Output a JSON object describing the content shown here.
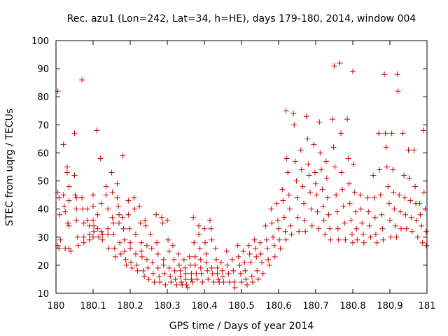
{
  "chart_data": {
    "type": "scatter",
    "title": "Rec. azu1 (Lon=242, Lat=34, h=HE), days 179-180, 2014, window 004",
    "xlabel": "GPS time / Days of year 2014",
    "ylabel": "STEC from uqrg / TECUs",
    "xlim": [
      180,
      181
    ],
    "ylim": [
      10,
      100
    ],
    "xticks": [
      180,
      180.1,
      180.2,
      180.3,
      180.4,
      180.5,
      180.6,
      180.7,
      180.8,
      180.9,
      181
    ],
    "xtick_labels": [
      "180",
      "180.1",
      "180.2",
      "180.3",
      "180.4",
      "180.5",
      "180.6",
      "180.7",
      "180.8",
      "180.9",
      "181"
    ],
    "yticks": [
      10,
      20,
      30,
      40,
      50,
      60,
      70,
      80,
      90,
      100
    ],
    "ytick_labels": [
      "10",
      "20",
      "30",
      "40",
      "50",
      "60",
      "70",
      "80",
      "90",
      "100"
    ],
    "grid": false,
    "marker": "plus",
    "color": "#cc0000",
    "points": [
      [
        180.005,
        82
      ],
      [
        180.005,
        46
      ],
      [
        180.008,
        44
      ],
      [
        180.01,
        38
      ],
      [
        180.012,
        29
      ],
      [
        180.005,
        27
      ],
      [
        180.008,
        26
      ],
      [
        180.02,
        63
      ],
      [
        180.02,
        45
      ],
      [
        180.022,
        41
      ],
      [
        180.025,
        39
      ],
      [
        180.025,
        26
      ],
      [
        180.03,
        55
      ],
      [
        180.03,
        53
      ],
      [
        180.035,
        48
      ],
      [
        180.035,
        43
      ],
      [
        180.032,
        35
      ],
      [
        180.035,
        34
      ],
      [
        180.035,
        26
      ],
      [
        180.04,
        25
      ],
      [
        180.05,
        67
      ],
      [
        180.05,
        52
      ],
      [
        180.052,
        45
      ],
      [
        180.055,
        44
      ],
      [
        180.055,
        40
      ],
      [
        180.055,
        36
      ],
      [
        180.058,
        30
      ],
      [
        180.06,
        27
      ],
      [
        180.07,
        86
      ],
      [
        180.07,
        44
      ],
      [
        180.072,
        40
      ],
      [
        180.075,
        35
      ],
      [
        180.075,
        30
      ],
      [
        180.075,
        28
      ],
      [
        180.085,
        40
      ],
      [
        180.085,
        36
      ],
      [
        180.09,
        34
      ],
      [
        180.09,
        31
      ],
      [
        180.09,
        29
      ],
      [
        180.1,
        45
      ],
      [
        180.1,
        41
      ],
      [
        180.1,
        36
      ],
      [
        180.102,
        34
      ],
      [
        180.102,
        32
      ],
      [
        180.1,
        30
      ],
      [
        180.11,
        68
      ],
      [
        180.112,
        38
      ],
      [
        180.112,
        33
      ],
      [
        180.115,
        30
      ],
      [
        180.12,
        58
      ],
      [
        180.122,
        42
      ],
      [
        180.122,
        32
      ],
      [
        180.125,
        31
      ],
      [
        180.125,
        29
      ],
      [
        180.135,
        48
      ],
      [
        180.135,
        45
      ],
      [
        180.14,
        40
      ],
      [
        180.14,
        33
      ],
      [
        180.14,
        31
      ],
      [
        180.142,
        26
      ],
      [
        180.15,
        53
      ],
      [
        180.152,
        46
      ],
      [
        180.152,
        37
      ],
      [
        180.155,
        35
      ],
      [
        180.155,
        31
      ],
      [
        180.158,
        26
      ],
      [
        180.16,
        23
      ],
      [
        180.165,
        49
      ],
      [
        180.165,
        44
      ],
      [
        180.168,
        41
      ],
      [
        180.17,
        38
      ],
      [
        180.17,
        35
      ],
      [
        180.172,
        28
      ],
      [
        180.175,
        24
      ],
      [
        180.18,
        59
      ],
      [
        180.18,
        37
      ],
      [
        180.182,
        33
      ],
      [
        180.185,
        29
      ],
      [
        180.185,
        25
      ],
      [
        180.188,
        22
      ],
      [
        180.19,
        20
      ],
      [
        180.195,
        43
      ],
      [
        180.195,
        38
      ],
      [
        180.198,
        33
      ],
      [
        180.2,
        28
      ],
      [
        180.2,
        26
      ],
      [
        180.202,
        21
      ],
      [
        180.205,
        19
      ],
      [
        180.21,
        44
      ],
      [
        180.212,
        40
      ],
      [
        180.215,
        31
      ],
      [
        180.215,
        24
      ],
      [
        180.218,
        20
      ],
      [
        180.22,
        18
      ],
      [
        180.225,
        41
      ],
      [
        180.228,
        35
      ],
      [
        180.23,
        28
      ],
      [
        180.23,
        25
      ],
      [
        180.232,
        23
      ],
      [
        180.235,
        18
      ],
      [
        180.238,
        16
      ],
      [
        180.24,
        36
      ],
      [
        180.242,
        34
      ],
      [
        180.245,
        27
      ],
      [
        180.245,
        22
      ],
      [
        180.248,
        19
      ],
      [
        180.25,
        15
      ],
      [
        180.255,
        31
      ],
      [
        180.258,
        26
      ],
      [
        180.26,
        21
      ],
      [
        180.262,
        17
      ],
      [
        180.265,
        14
      ],
      [
        180.27,
        38
      ],
      [
        180.272,
        28
      ],
      [
        180.275,
        24
      ],
      [
        180.275,
        19
      ],
      [
        180.278,
        16
      ],
      [
        180.28,
        14
      ],
      [
        180.285,
        37
      ],
      [
        180.288,
        35
      ],
      [
        180.29,
        22
      ],
      [
        180.29,
        20
      ],
      [
        180.292,
        17
      ],
      [
        180.295,
        13
      ],
      [
        180.3,
        36
      ],
      [
        180.302,
        29
      ],
      [
        180.305,
        25
      ],
      [
        180.305,
        19
      ],
      [
        180.308,
        16
      ],
      [
        180.31,
        14
      ],
      [
        180.315,
        27
      ],
      [
        180.318,
        22
      ],
      [
        180.32,
        18
      ],
      [
        180.322,
        15
      ],
      [
        180.325,
        13
      ],
      [
        180.33,
        24
      ],
      [
        180.332,
        20
      ],
      [
        180.335,
        18
      ],
      [
        180.335,
        16
      ],
      [
        180.338,
        14
      ],
      [
        180.34,
        13
      ],
      [
        180.345,
        22
      ],
      [
        180.348,
        19
      ],
      [
        180.35,
        17
      ],
      [
        180.35,
        15
      ],
      [
        180.352,
        13
      ],
      [
        180.355,
        12
      ],
      [
        180.36,
        23
      ],
      [
        180.362,
        20
      ],
      [
        180.365,
        17
      ],
      [
        180.365,
        15
      ],
      [
        180.368,
        14
      ],
      [
        180.37,
        37
      ],
      [
        180.372,
        28
      ],
      [
        180.375,
        23
      ],
      [
        180.375,
        20
      ],
      [
        180.378,
        17
      ],
      [
        180.38,
        15
      ],
      [
        180.385,
        34
      ],
      [
        180.385,
        31
      ],
      [
        180.388,
        26
      ],
      [
        180.39,
        22
      ],
      [
        180.39,
        19
      ],
      [
        180.392,
        17
      ],
      [
        180.395,
        14
      ],
      [
        180.4,
        33
      ],
      [
        180.402,
        28
      ],
      [
        180.405,
        24
      ],
      [
        180.405,
        21
      ],
      [
        180.408,
        18
      ],
      [
        180.41,
        15
      ],
      [
        180.415,
        36
      ],
      [
        180.418,
        33
      ],
      [
        180.42,
        29
      ],
      [
        180.42,
        19
      ],
      [
        180.422,
        17
      ],
      [
        180.425,
        14
      ],
      [
        180.43,
        26
      ],
      [
        180.432,
        22
      ],
      [
        180.435,
        19
      ],
      [
        180.435,
        17
      ],
      [
        180.438,
        15
      ],
      [
        180.44,
        14
      ],
      [
        180.445,
        21
      ],
      [
        180.448,
        18
      ],
      [
        180.45,
        16
      ],
      [
        180.452,
        14
      ],
      [
        180.46,
        25
      ],
      [
        180.462,
        20
      ],
      [
        180.465,
        17
      ],
      [
        180.468,
        14
      ],
      [
        180.475,
        22
      ],
      [
        180.478,
        18
      ],
      [
        180.48,
        14
      ],
      [
        180.482,
        12
      ],
      [
        180.49,
        27
      ],
      [
        180.492,
        23
      ],
      [
        180.495,
        20
      ],
      [
        180.498,
        17
      ],
      [
        180.5,
        14
      ],
      [
        180.505,
        25
      ],
      [
        180.508,
        21
      ],
      [
        180.51,
        18
      ],
      [
        180.512,
        15
      ],
      [
        180.515,
        13
      ],
      [
        180.52,
        27
      ],
      [
        180.522,
        24
      ],
      [
        180.525,
        21
      ],
      [
        180.528,
        16
      ],
      [
        180.53,
        14
      ],
      [
        180.535,
        29
      ],
      [
        180.538,
        26
      ],
      [
        180.54,
        23
      ],
      [
        180.542,
        18
      ],
      [
        180.545,
        15
      ],
      [
        180.55,
        28
      ],
      [
        180.552,
        24
      ],
      [
        180.555,
        21
      ],
      [
        180.558,
        17
      ],
      [
        180.565,
        34
      ],
      [
        180.568,
        29
      ],
      [
        180.57,
        26
      ],
      [
        180.572,
        22
      ],
      [
        180.575,
        20
      ],
      [
        180.58,
        40
      ],
      [
        180.582,
        35
      ],
      [
        180.585,
        30
      ],
      [
        180.588,
        27
      ],
      [
        180.59,
        23
      ],
      [
        180.595,
        42
      ],
      [
        180.598,
        36
      ],
      [
        180.6,
        33
      ],
      [
        180.602,
        29
      ],
      [
        180.605,
        26
      ],
      [
        180.61,
        47
      ],
      [
        180.612,
        43
      ],
      [
        180.615,
        37
      ],
      [
        180.618,
        32
      ],
      [
        180.62,
        29
      ],
      [
        180.62,
        75
      ],
      [
        180.622,
        58
      ],
      [
        180.625,
        53
      ],
      [
        180.628,
        45
      ],
      [
        180.63,
        40
      ],
      [
        180.632,
        34
      ],
      [
        180.635,
        31
      ],
      [
        180.64,
        74
      ],
      [
        180.642,
        70
      ],
      [
        180.645,
        57
      ],
      [
        180.648,
        50
      ],
      [
        180.65,
        44
      ],
      [
        180.652,
        37
      ],
      [
        180.655,
        32
      ],
      [
        180.66,
        61
      ],
      [
        180.662,
        54
      ],
      [
        180.665,
        48
      ],
      [
        180.668,
        42
      ],
      [
        180.67,
        36
      ],
      [
        180.672,
        32
      ],
      [
        180.675,
        73
      ],
      [
        180.678,
        65
      ],
      [
        180.68,
        56
      ],
      [
        180.682,
        52
      ],
      [
        180.685,
        46
      ],
      [
        180.688,
        40
      ],
      [
        180.69,
        34
      ],
      [
        180.695,
        63
      ],
      [
        180.698,
        53
      ],
      [
        180.7,
        49
      ],
      [
        180.702,
        45
      ],
      [
        180.705,
        39
      ],
      [
        180.708,
        33
      ],
      [
        180.71,
        71
      ],
      [
        180.712,
        60
      ],
      [
        180.715,
        54
      ],
      [
        180.718,
        47
      ],
      [
        180.72,
        41
      ],
      [
        180.722,
        36
      ],
      [
        180.725,
        31
      ],
      [
        180.728,
        57
      ],
      [
        180.73,
        51
      ],
      [
        180.732,
        44
      ],
      [
        180.735,
        38
      ],
      [
        180.738,
        33
      ],
      [
        180.74,
        29
      ],
      [
        180.745,
        72
      ],
      [
        180.748,
        62
      ],
      [
        180.75,
        91
      ],
      [
        180.752,
        55
      ],
      [
        180.755,
        45
      ],
      [
        180.758,
        39
      ],
      [
        180.76,
        33
      ],
      [
        180.762,
        29
      ],
      [
        180.765,
        92
      ],
      [
        180.768,
        67
      ],
      [
        180.77,
        53
      ],
      [
        180.772,
        47
      ],
      [
        180.775,
        41
      ],
      [
        180.778,
        35
      ],
      [
        180.78,
        29
      ],
      [
        180.785,
        72
      ],
      [
        180.788,
        58
      ],
      [
        180.79,
        49
      ],
      [
        180.792,
        42
      ],
      [
        180.795,
        36
      ],
      [
        180.798,
        31
      ],
      [
        180.8,
        28
      ],
      [
        180.8,
        89
      ],
      [
        180.802,
        56
      ],
      [
        180.805,
        46
      ],
      [
        180.808,
        39
      ],
      [
        180.81,
        33
      ],
      [
        180.812,
        29
      ],
      [
        180.82,
        45
      ],
      [
        180.822,
        40
      ],
      [
        180.825,
        35
      ],
      [
        180.828,
        31
      ],
      [
        180.83,
        28
      ],
      [
        180.84,
        44
      ],
      [
        180.842,
        39
      ],
      [
        180.845,
        34
      ],
      [
        180.848,
        30
      ],
      [
        180.855,
        52
      ],
      [
        180.858,
        44
      ],
      [
        180.86,
        37
      ],
      [
        180.862,
        31
      ],
      [
        180.865,
        28
      ],
      [
        180.87,
        67
      ],
      [
        180.872,
        54
      ],
      [
        180.875,
        45
      ],
      [
        180.878,
        38
      ],
      [
        180.88,
        33
      ],
      [
        180.882,
        29
      ],
      [
        180.885,
        88
      ],
      [
        180.888,
        67
      ],
      [
        180.89,
        62
      ],
      [
        180.892,
        55
      ],
      [
        180.895,
        48
      ],
      [
        180.898,
        42
      ],
      [
        180.9,
        36
      ],
      [
        180.902,
        30
      ],
      [
        180.905,
        67
      ],
      [
        180.908,
        54
      ],
      [
        180.91,
        46
      ],
      [
        180.912,
        40
      ],
      [
        180.915,
        34
      ],
      [
        180.918,
        30
      ],
      [
        180.92,
        88
      ],
      [
        180.922,
        82
      ],
      [
        180.925,
        45
      ],
      [
        180.928,
        39
      ],
      [
        180.93,
        33
      ],
      [
        180.935,
        67
      ],
      [
        180.938,
        52
      ],
      [
        180.94,
        44
      ],
      [
        180.942,
        38
      ],
      [
        180.945,
        33
      ],
      [
        180.95,
        61
      ],
      [
        180.952,
        51
      ],
      [
        180.955,
        43
      ],
      [
        180.958,
        37
      ],
      [
        180.96,
        32
      ],
      [
        180.965,
        61
      ],
      [
        180.968,
        48
      ],
      [
        180.97,
        42
      ],
      [
        180.972,
        36
      ],
      [
        180.975,
        30
      ],
      [
        180.98,
        42
      ],
      [
        180.982,
        38
      ],
      [
        180.985,
        34
      ],
      [
        180.988,
        28
      ],
      [
        180.99,
        68
      ],
      [
        180.992,
        46
      ],
      [
        180.995,
        40
      ],
      [
        180.998,
        32
      ],
      [
        180.998,
        27
      ]
    ]
  }
}
